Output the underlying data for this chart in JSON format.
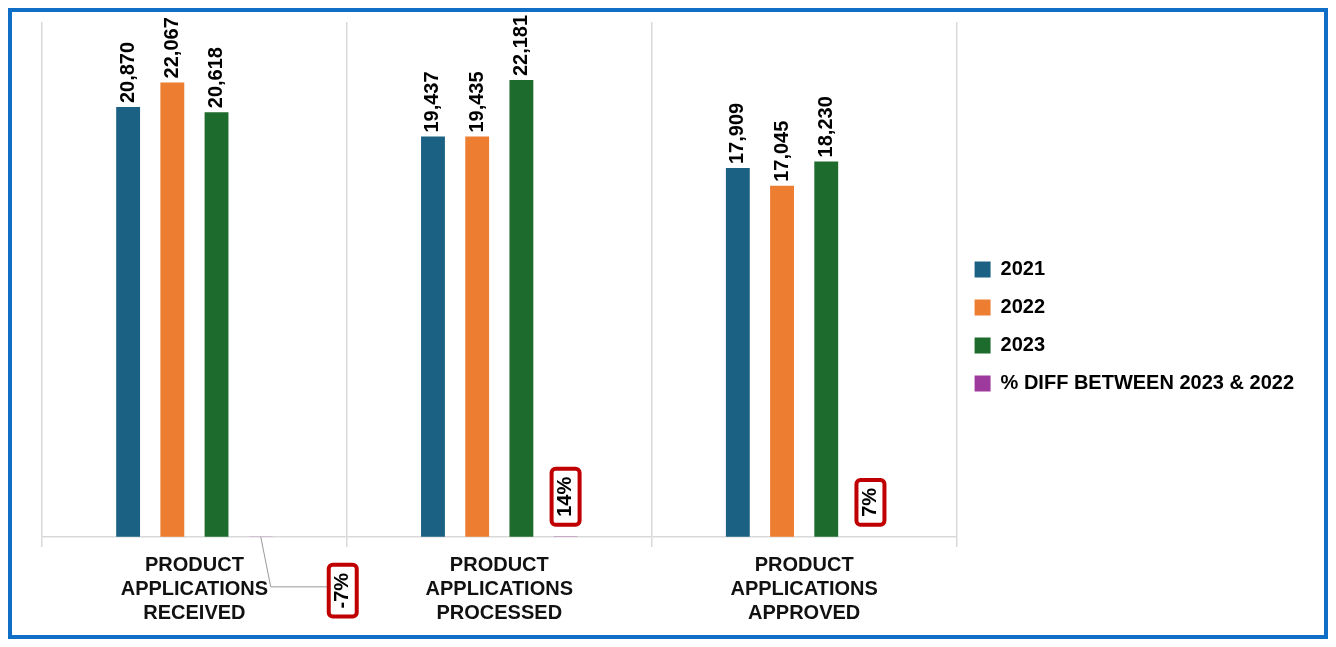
{
  "chart_data": {
    "type": "bar",
    "categories": [
      "PRODUCT APPLICATIONS RECEIVED",
      "PRODUCT APPLICATIONS PROCESSED",
      "PRODUCT APPLICATIONS APPROVED"
    ],
    "series": [
      {
        "name": "2021",
        "color": "#1b6183",
        "values": [
          20870,
          19437,
          17909
        ],
        "value_labels": [
          "20,870",
          "19,437",
          "17,909"
        ]
      },
      {
        "name": "2022",
        "color": "#ed7d31",
        "values": [
          22067,
          19435,
          17045
        ],
        "value_labels": [
          "22,067",
          "19,435",
          "17,045"
        ]
      },
      {
        "name": "2023",
        "color": "#1e6b2e",
        "values": [
          20618,
          22181,
          18230
        ],
        "value_labels": [
          "20,618",
          "22,181",
          "18,230"
        ]
      },
      {
        "name": "% DIFF BETWEEN 2023 & 2022",
        "color": "#9e3a9e",
        "values": [
          -7,
          14,
          7
        ],
        "value_labels": [
          "-7%",
          "14%",
          "7%"
        ]
      }
    ],
    "grid": "x",
    "legend": "right",
    "tick_labels": "x"
  }
}
